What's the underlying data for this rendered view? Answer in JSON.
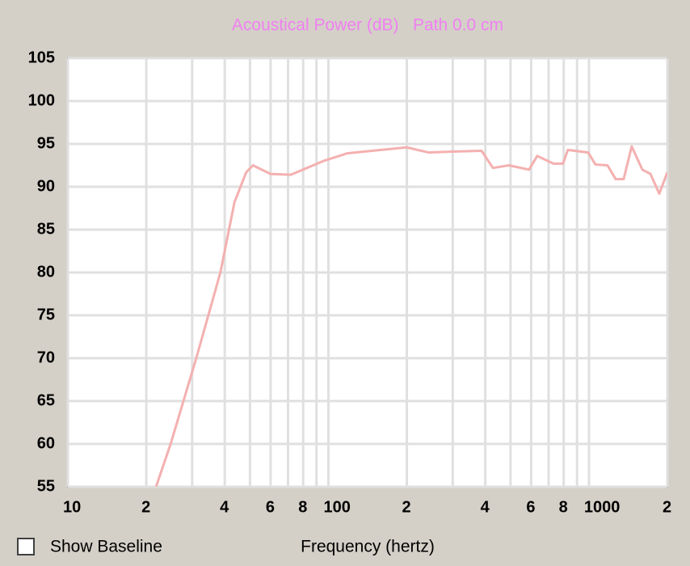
{
  "chart_data": {
    "type": "line",
    "title": "Acoustical Power (dB)   Path 0.0 cm",
    "x_label": "Frequency (hertz)",
    "x_scale": "log",
    "xlim": [
      10,
      2000
    ],
    "xticks": [
      10,
      {
        "value": 20,
        "label": "2"
      },
      {
        "value": 40,
        "label": "4"
      },
      {
        "value": 60,
        "label": "6"
      },
      {
        "value": 80,
        "label": "8"
      },
      100,
      {
        "value": 200,
        "label": "2"
      },
      {
        "value": 400,
        "label": "4"
      },
      {
        "value": 600,
        "label": "6"
      },
      {
        "value": 800,
        "label": "8"
      },
      1000,
      {
        "value": 2000,
        "label": "2"
      }
    ],
    "xminor": [
      30,
      50,
      70,
      90,
      300,
      500,
      700,
      900
    ],
    "ylim": [
      55,
      105
    ],
    "yticks": [
      55,
      60,
      65,
      70,
      75,
      80,
      85,
      90,
      95,
      100,
      105
    ],
    "grid": true,
    "series": [
      {
        "color": "#f4b0b0",
        "x": [
          21.8,
          24.8,
          31.1,
          38.5,
          43.6,
          48.4,
          51.3,
          60,
          71.7,
          95.5,
          118,
          147,
          200,
          242,
          299,
          387,
          428,
          493,
          589,
          633,
          731,
          795,
          830,
          993,
          1059,
          1178,
          1266,
          1359,
          1459,
          1603,
          1722,
          1862,
          2000
        ],
        "values": [
          55,
          60,
          70,
          80,
          88.2,
          91.7,
          92.5,
          91.5,
          91.4,
          93,
          93.9,
          94.2,
          94.6,
          94,
          94.1,
          94.2,
          92.2,
          92.5,
          92,
          93.6,
          92.7,
          92.7,
          94.3,
          94,
          92.6,
          92.5,
          90.9,
          90.9,
          94.7,
          92,
          91.5,
          89.2,
          91.7
        ]
      }
    ],
    "checkbox": {
      "label": "Show Baseline",
      "checked": false
    }
  }
}
